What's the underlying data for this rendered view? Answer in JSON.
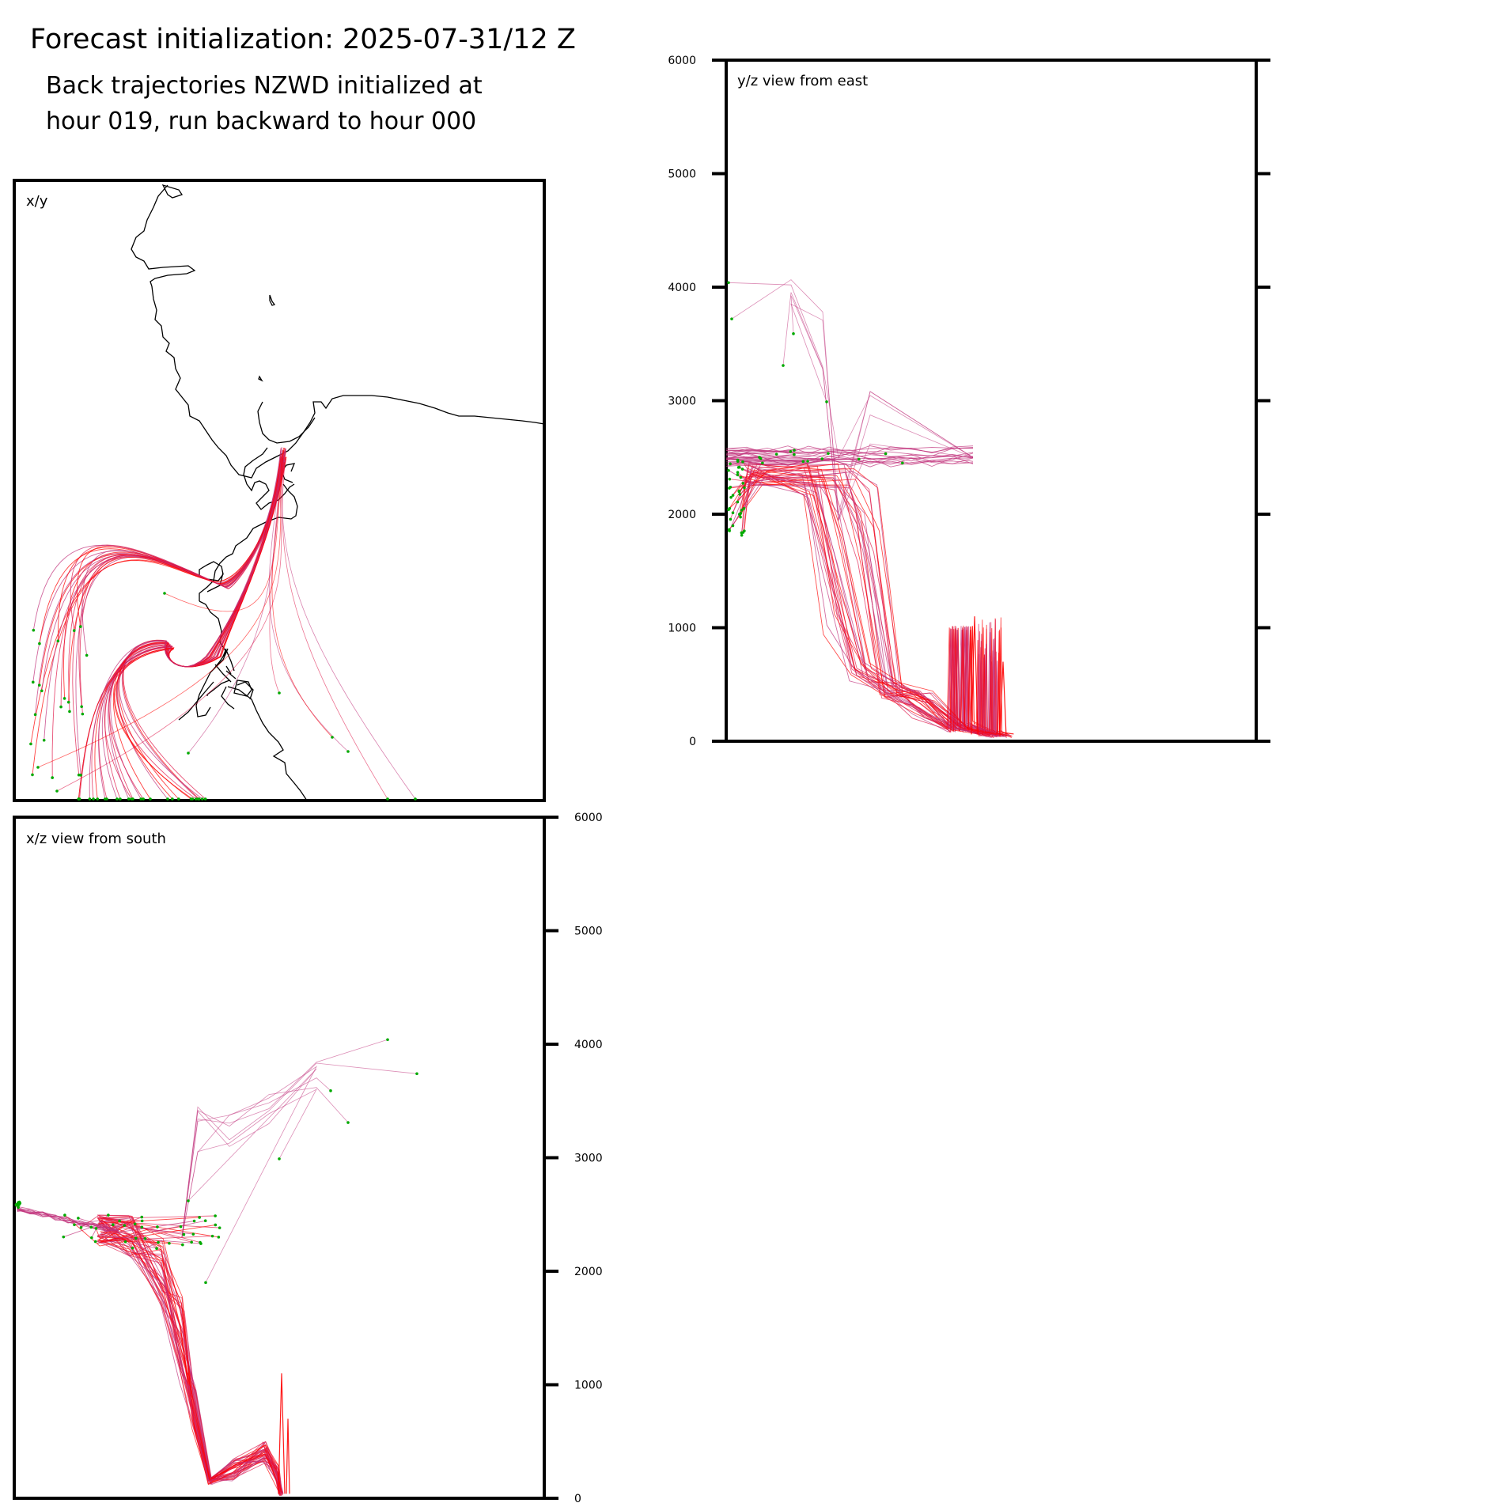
{
  "figure": {
    "title": "Forecast initialization: 2025-07-31/12 Z",
    "subtitle_line1": "Back trajectories NZWD initialized at",
    "subtitle_line2": "hour 019, run backward to hour 000"
  },
  "colors": {
    "trajectory_low": "#ff0000",
    "trajectory_mid": "#e0184a",
    "trajectory_high": "#c0307a",
    "endpoint": "#00aa00",
    "frame": "#000000",
    "coastline": "#000000"
  },
  "chart_data": [
    {
      "type": "line",
      "panel": "x/y",
      "label": "x/y",
      "description_of_axes": "none",
      "grid": false,
      "trajectory_count": 60
    },
    {
      "type": "line",
      "panel": "y/z",
      "label": "y/z view from east",
      "ylim": [
        0,
        6000
      ],
      "yticks": [
        0,
        1000,
        2000,
        3000,
        4000,
        5000,
        6000
      ],
      "ytick_labels": [
        "0",
        "1000",
        "2000",
        "3000",
        "4000",
        "5000",
        "6000"
      ],
      "grid": false
    },
    {
      "type": "line",
      "panel": "x/z",
      "label": "x/z view from south",
      "ylim": [
        0,
        6000
      ],
      "yticks": [
        0,
        1000,
        2000,
        3000,
        4000,
        5000,
        6000
      ],
      "ytick_labels": [
        "0",
        "1000",
        "2000",
        "3000",
        "4000",
        "5000",
        "6000"
      ],
      "grid": false
    }
  ]
}
